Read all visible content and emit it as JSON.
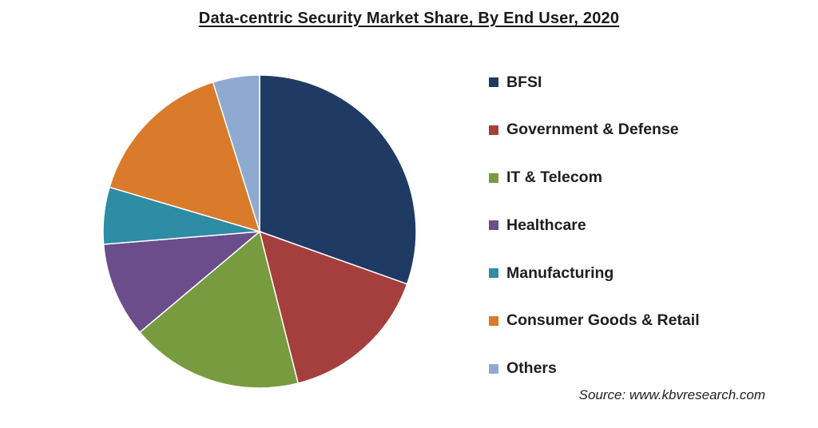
{
  "chart_data": {
    "type": "pie",
    "title": "Data-centric Security Market Share, By End User, 2020",
    "slices": [
      {
        "label": "BFSI",
        "value": 31.6,
        "color": "#1f3b64"
      },
      {
        "label": "Government & Defense",
        "value": 16.2,
        "color": "#a53f3d"
      },
      {
        "label": "IT & Telecom",
        "value": 18.5,
        "color": "#789b3f"
      },
      {
        "label": "Healthcare",
        "value": 10.2,
        "color": "#6a4d8a"
      },
      {
        "label": "Manufacturing",
        "value": 6.1,
        "color": "#2e8ca4"
      },
      {
        "label": "Consumer Goods & Retail",
        "value": 16.2,
        "color": "#d97b2a"
      },
      {
        "label": "Others",
        "value": 5.0,
        "color": "#8faad0"
      }
    ],
    "start_angle_deg": 0,
    "direction": "clockwise",
    "legend_position": "right",
    "source": "Source: www.kbvresearch.com"
  }
}
